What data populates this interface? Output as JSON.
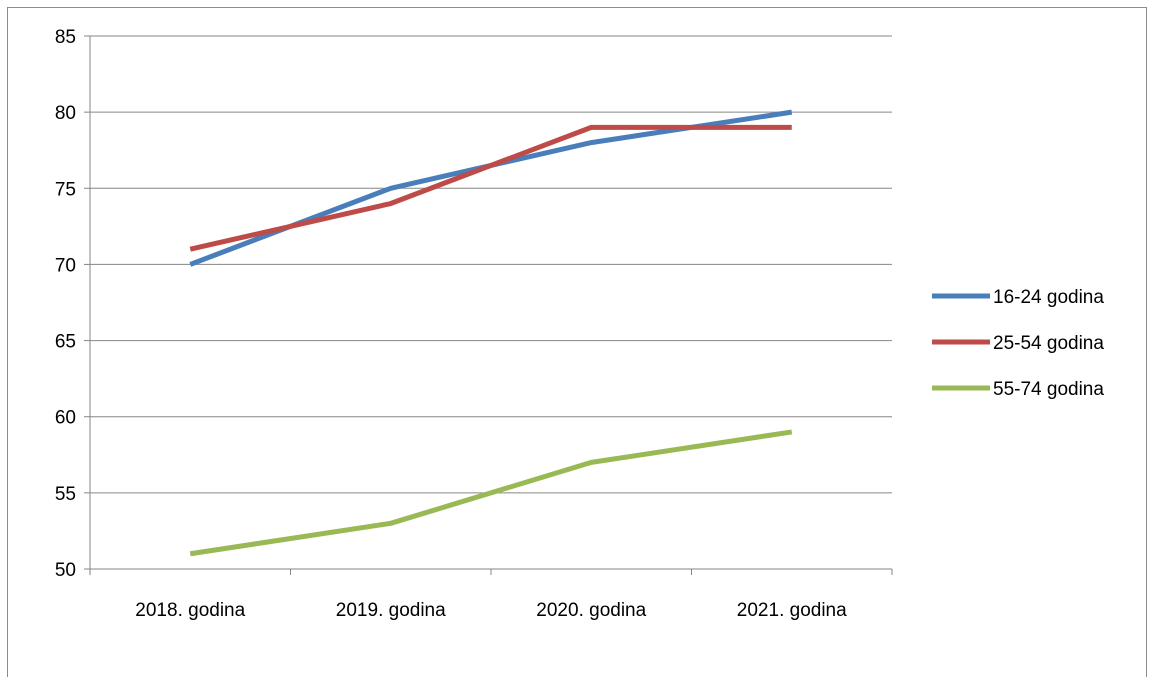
{
  "chart_data": {
    "type": "line",
    "categories": [
      "2018. godina",
      "2019. godina",
      "2020. godina",
      "2021. godina"
    ],
    "series": [
      {
        "name": "16-24 godina",
        "values": [
          70,
          75,
          78,
          80
        ],
        "color": "#4a7ebb"
      },
      {
        "name": "25-54 godina",
        "values": [
          71,
          74,
          79,
          79
        ],
        "color": "#be4b48"
      },
      {
        "name": "55-74 godina",
        "values": [
          51,
          53,
          57,
          59
        ],
        "color": "#98b954"
      }
    ],
    "ylim": [
      50,
      85
    ],
    "yticks": [
      50,
      55,
      60,
      65,
      70,
      75,
      80,
      85
    ],
    "grid": "horizontal",
    "legend_position": "right"
  }
}
